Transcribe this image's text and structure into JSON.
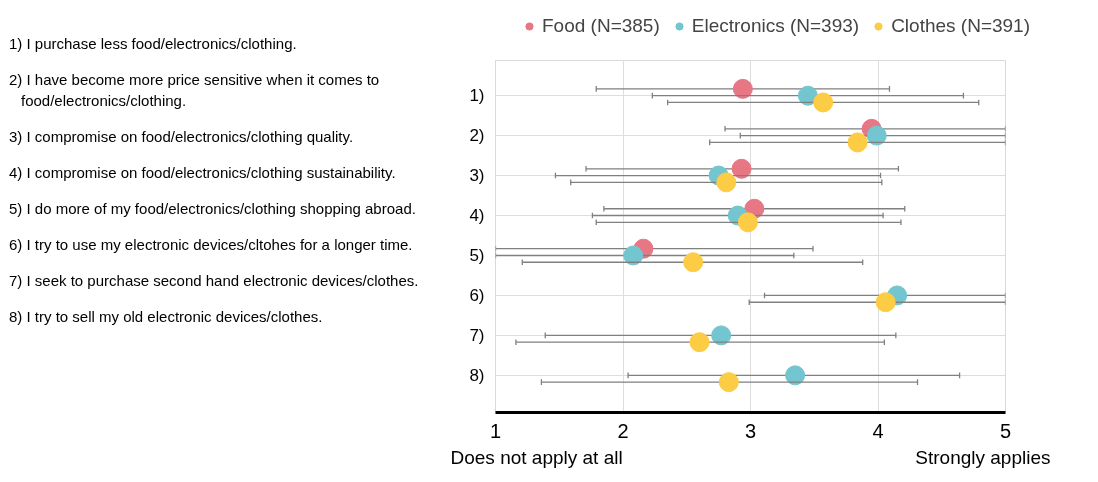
{
  "chart_data": {
    "type": "scatter",
    "orientation": "horizontal",
    "categories": [
      "1)",
      "2)",
      "3)",
      "4)",
      "5)",
      "6)",
      "7)",
      "8)"
    ],
    "series": [
      {
        "name": "Food (N=385)",
        "color": "#e87785",
        "values": [
          2.94,
          3.95,
          2.93,
          3.03,
          2.16,
          null,
          null,
          null
        ],
        "errors": [
          [
            1.79,
            4.09
          ],
          [
            2.8,
            5
          ],
          [
            1.71,
            4.16
          ],
          [
            1.85,
            4.21
          ],
          [
            1,
            3.49
          ],
          null,
          null,
          null
        ]
      },
      {
        "name": "Electronics (N=393)",
        "color": "#73c6cf",
        "values": [
          3.45,
          3.99,
          2.75,
          2.9,
          2.08,
          4.15,
          2.77,
          3.35
        ],
        "errors": [
          [
            2.23,
            4.67
          ],
          [
            2.92,
            5
          ],
          [
            1.47,
            4.02
          ],
          [
            1.76,
            4.04
          ],
          [
            1,
            3.34
          ],
          [
            3.11,
            5
          ],
          [
            1.39,
            4.14
          ],
          [
            2.04,
            4.64
          ]
        ]
      },
      {
        "name": "Clothes (N=391)",
        "color": "#fccc44",
        "values": [
          3.57,
          3.84,
          2.81,
          2.98,
          2.55,
          4.06,
          2.6,
          2.83
        ],
        "errors": [
          [
            2.35,
            4.79
          ],
          [
            2.68,
            5
          ],
          [
            1.59,
            4.03
          ],
          [
            1.79,
            4.18
          ],
          [
            1.21,
            3.88
          ],
          [
            2.99,
            5
          ],
          [
            1.16,
            4.05
          ],
          [
            1.36,
            4.31
          ]
        ]
      }
    ],
    "xlim": [
      1,
      5
    ],
    "xticks": [
      1,
      2,
      3,
      4,
      5
    ],
    "grid": true,
    "legend": "top",
    "marker": "circle",
    "annotations": [
      "1) I purchase less food/electronics/clothing.",
      "2) I have become more price sensitive when it comes to food/electronics/clothing.",
      "3) I compromise on food/electronics/clothing quality.",
      "4) I compromise on food/electronics/clothing sustainability.",
      "5) I do more of my food/electronics/clothing shopping abroad.",
      "6) I try to use my electronic devices/cltohes for a longer time.",
      "7) I seek to purchase second hand electronic devices/clothes.",
      "8) I try to sell my old electronic devices/clothes.",
      "Does not apply at all",
      "Strongly applies"
    ]
  }
}
